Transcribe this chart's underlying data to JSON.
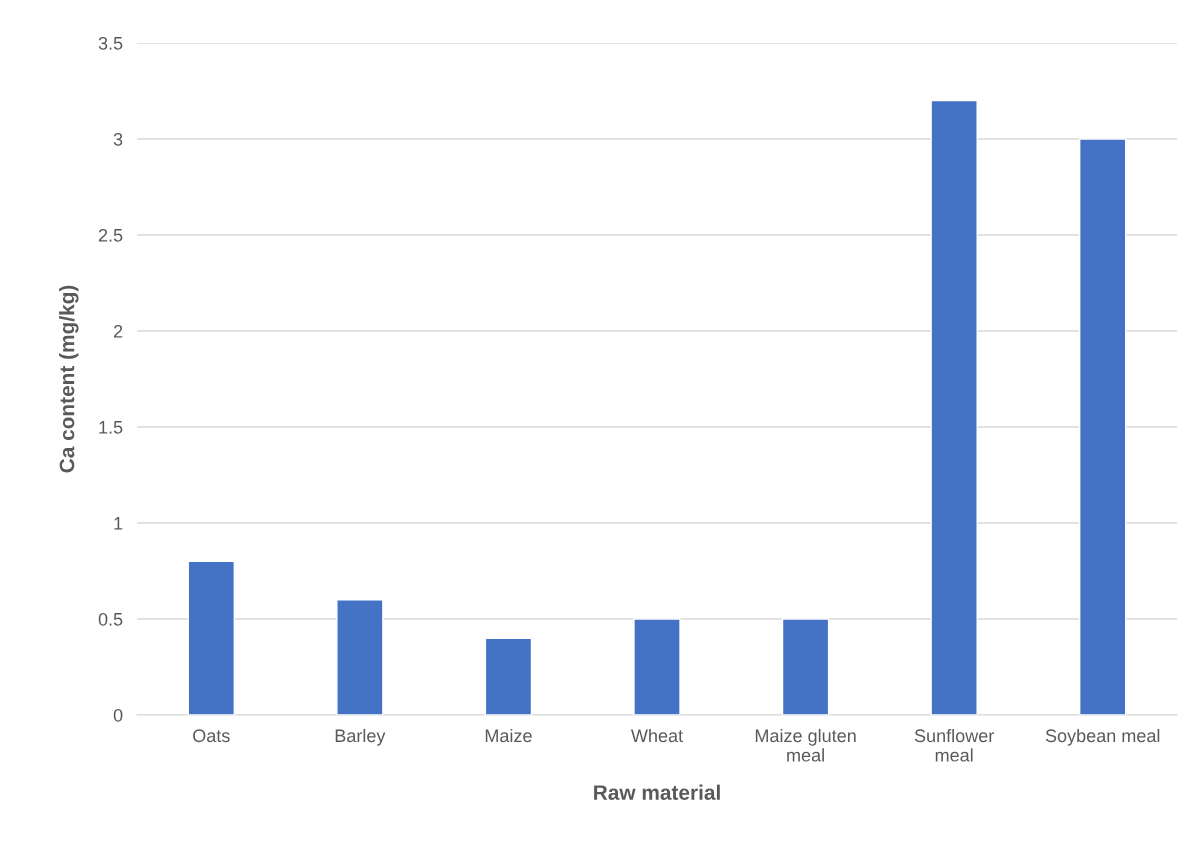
{
  "chart_data": {
    "type": "bar",
    "xlabel": "Raw material",
    "ylabel": "Ca content (mg/kg)",
    "categories": [
      "Oats",
      "Barley",
      "Maize",
      "Wheat",
      "Maize gluten\nmeal",
      "Sunflower\nmeal",
      "Soybean meal"
    ],
    "values": [
      0.8,
      0.6,
      0.4,
      0.5,
      0.5,
      3.2,
      3
    ],
    "color": "#4472c4",
    "ylim": [
      0,
      3.5
    ],
    "yticks": [
      0,
      0.5,
      1,
      1.5,
      2,
      2.5,
      3,
      3.5
    ],
    "grid": "y",
    "legend": false
  }
}
